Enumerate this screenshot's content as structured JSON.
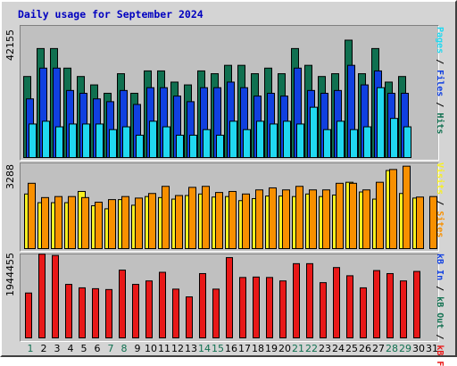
{
  "title": "Daily usage for September 2024",
  "colors": {
    "hits": "#107050",
    "files": "#1040e0",
    "pages": "#20d8f0",
    "visits": "#f8f020",
    "sites": "#f89000",
    "kbytes": "#e81818",
    "title": "#0000c0",
    "weekday_label": "#000000",
    "weekend_label": "#107050"
  },
  "legend": {
    "top": {
      "pages": "Pages",
      "files": "Files",
      "hits": "Hits",
      "sep": " / "
    },
    "middle": {
      "visits": "Visits",
      "sites": "Sites",
      "sep": " / "
    },
    "bottom": {
      "kbin": "kB In",
      "kbout": "kB Out",
      "kbf": "kB F",
      "sep": " / "
    }
  },
  "chart_data": [
    {
      "type": "bar",
      "panel": "top",
      "x": [
        1,
        2,
        3,
        4,
        5,
        6,
        7,
        8,
        9,
        10,
        11,
        12,
        13,
        14,
        15,
        16,
        17,
        18,
        19,
        20,
        21,
        22,
        23,
        24,
        25,
        26,
        27,
        28,
        29,
        30,
        31
      ],
      "ymax_label": "42155",
      "ylim": [
        0,
        42155
      ],
      "series": [
        {
          "name": "Hits",
          "values": [
            29000,
            39000,
            39000,
            32000,
            29000,
            26000,
            23000,
            30000,
            23000,
            31000,
            31000,
            27000,
            26000,
            31000,
            30000,
            33000,
            33000,
            30000,
            32000,
            30000,
            39000,
            33000,
            29000,
            30000,
            42000,
            30000,
            39000,
            27000,
            29000,
            null,
            null
          ]
        },
        {
          "name": "Files",
          "values": [
            21000,
            32000,
            32000,
            24000,
            23000,
            21000,
            20000,
            24000,
            19000,
            25000,
            25000,
            22000,
            20000,
            25000,
            25000,
            27000,
            25000,
            22000,
            23000,
            22000,
            32000,
            24000,
            23000,
            24000,
            33000,
            26000,
            31000,
            23000,
            23000,
            null,
            null
          ]
        },
        {
          "name": "Pages",
          "values": [
            12000,
            13000,
            11000,
            12000,
            12000,
            12000,
            10000,
            11000,
            8000,
            13000,
            11000,
            8000,
            8000,
            10000,
            8000,
            13000,
            10000,
            13000,
            12000,
            13000,
            12000,
            18000,
            10000,
            13000,
            10000,
            11000,
            25000,
            14000,
            11000,
            null,
            null
          ]
        }
      ]
    },
    {
      "type": "bar",
      "panel": "middle",
      "x": [
        1,
        2,
        3,
        4,
        5,
        6,
        7,
        8,
        9,
        10,
        11,
        12,
        13,
        14,
        15,
        16,
        17,
        18,
        19,
        20,
        21,
        22,
        23,
        24,
        25,
        26,
        27,
        28,
        29,
        30,
        31
      ],
      "ymax_label": "3288",
      "ylim": [
        0,
        3288
      ],
      "series": [
        {
          "name": "Visits",
          "values": [
            2140,
            1800,
            1800,
            1800,
            2240,
            1680,
            1560,
            1920,
            1700,
            2040,
            2000,
            1940,
            2080,
            2140,
            2020,
            2040,
            1880,
            1960,
            2060,
            2060,
            2040,
            2140,
            2040,
            2100,
            2600,
            2220,
            1940,
            3060,
            2160,
            1980,
            null
          ]
        },
        {
          "name": "Sites",
          "values": [
            2560,
            2000,
            2040,
            2040,
            2000,
            1820,
            1920,
            2040,
            1980,
            2160,
            2440,
            2080,
            2400,
            2440,
            2200,
            2240,
            2140,
            2300,
            2380,
            2300,
            2440,
            2300,
            2300,
            2560,
            2560,
            2300,
            2600,
            3100,
            3230,
            2020,
            2040
          ]
        }
      ]
    },
    {
      "type": "bar",
      "panel": "bottom",
      "x": [
        1,
        2,
        3,
        4,
        5,
        6,
        7,
        8,
        9,
        10,
        11,
        12,
        13,
        14,
        15,
        16,
        17,
        18,
        19,
        20,
        21,
        22,
        23,
        24,
        25,
        26,
        27,
        28,
        29,
        30,
        31
      ],
      "ymax_label": "1944455",
      "ylim": [
        0,
        1944455
      ],
      "series": [
        {
          "name": "kB F",
          "values": [
            null,
            null,
            null,
            null,
            null,
            null,
            null,
            null,
            null,
            null,
            null,
            null,
            null,
            null,
            null,
            null,
            null,
            null,
            null,
            null,
            null,
            null,
            null,
            null,
            null,
            null,
            null,
            null,
            null,
            null,
            null
          ]
        },
        {
          "name": "kB In",
          "values": [
            null,
            null,
            null,
            null,
            null,
            null,
            null,
            null,
            null,
            null,
            null,
            null,
            null,
            null,
            null,
            null,
            null,
            null,
            null,
            null,
            null,
            null,
            null,
            null,
            null,
            null,
            null,
            null,
            null,
            null,
            null
          ]
        },
        {
          "name": "kB Out",
          "values": [
            1040000,
            1940000,
            1910000,
            1240000,
            1160000,
            1140000,
            1120000,
            1570000,
            1240000,
            1320000,
            1520000,
            1130000,
            950000,
            1490000,
            1130000,
            1860000,
            1400000,
            1410000,
            1400000,
            1320000,
            1720000,
            1720000,
            1280000,
            1630000,
            1440000,
            1160000,
            1560000,
            1490000,
            1320000,
            1540000,
            null
          ]
        }
      ]
    }
  ],
  "days": {
    "labels": [
      "1",
      "2",
      "3",
      "4",
      "5",
      "6",
      "7",
      "8",
      "9",
      "10",
      "11",
      "12",
      "13",
      "14",
      "15",
      "16",
      "17",
      "18",
      "19",
      "20",
      "21",
      "22",
      "23",
      "24",
      "25",
      "26",
      "27",
      "28",
      "29",
      "30",
      "31"
    ],
    "weekend": [
      1,
      7,
      8,
      14,
      15,
      21,
      22,
      28,
      29
    ]
  }
}
